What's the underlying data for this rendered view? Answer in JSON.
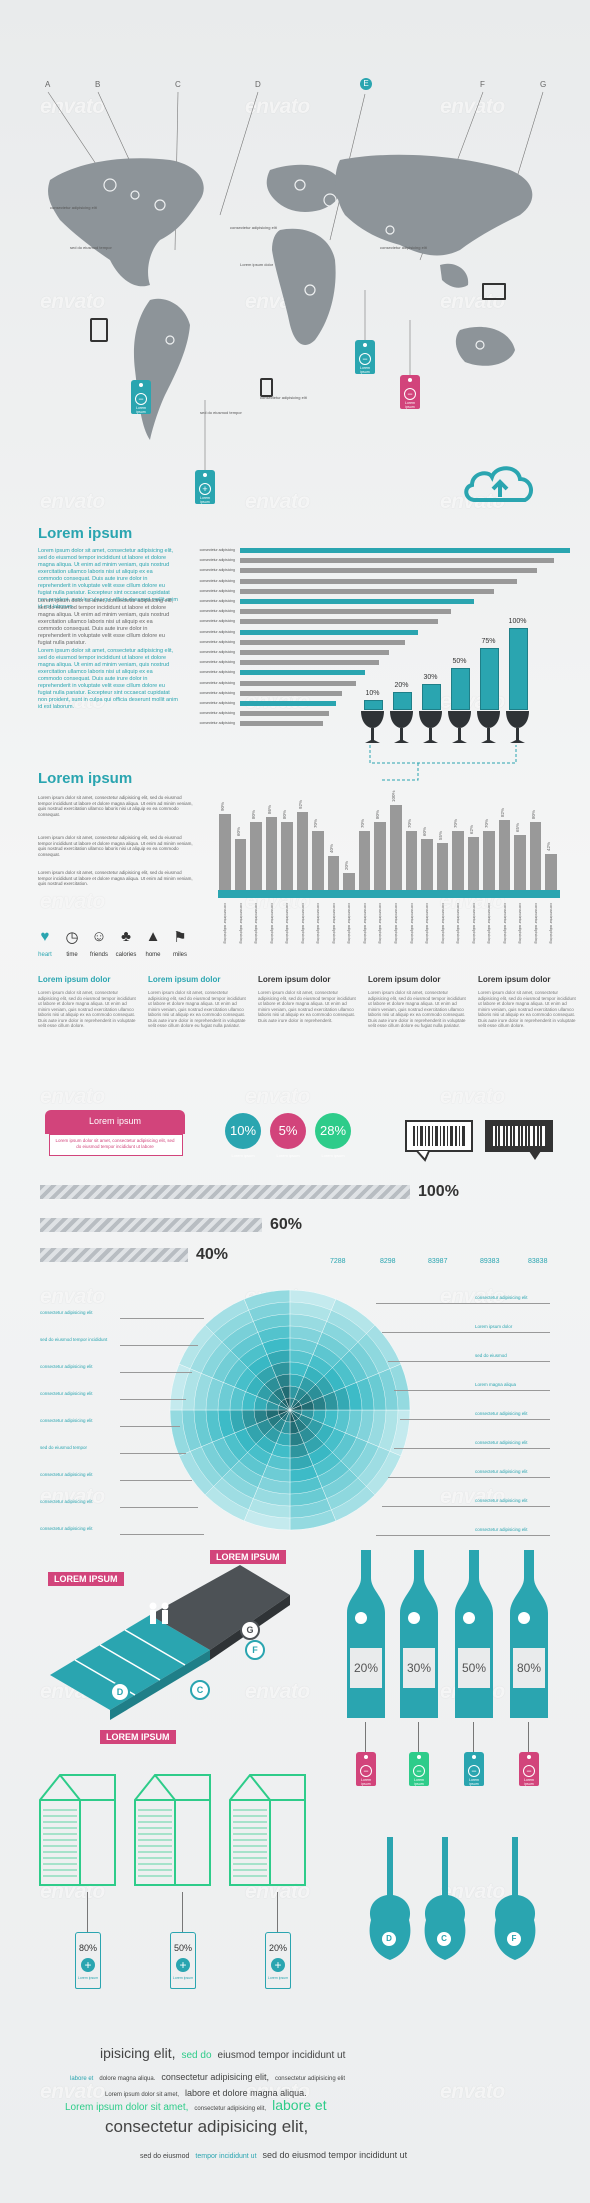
{
  "watermark": "envato",
  "map": {
    "letters": [
      "A",
      "B",
      "C",
      "D",
      "E",
      "F",
      "G"
    ],
    "tags": [
      {
        "text": "Lorem ipsum"
      },
      {
        "text": "Lorem ipsum"
      },
      {
        "text": "Lorem ipsum"
      },
      {
        "text": "Lorem ipsum"
      }
    ],
    "labels": [
      "consectetur adipisicing elit",
      "sed do eiusmod tempor",
      "consectetur adipisicing elit",
      "Lorem ipsum dolor",
      "consectetur adipisicing elit",
      "sed do eiusmod tempor",
      "consectetur adipisicing elit"
    ]
  },
  "section1": {
    "title": "Lorem ipsum",
    "paragraphs": [
      "Lorem ipsum dolor sit amet, consectetur adipisicing elit, sed do eiusmod tempor incididunt ut labore et dolore magna aliqua. Ut enim ad minim veniam, quis nostrud exercitation ullamco laboris nisi ut aliquip ex ea commodo consequat. Duis aute irure dolor in reprehenderit in voluptate velit esse cillum dolore eu fugiat nulla pariatur. Excepteur sint occaecat cupidatat non proident, sunt in culpa qui officia deserunt mollit anim id est laborum.",
      "Lorem ipsum dolor sit amet, consectetur adipisicing elit, sed do eiusmod tempor incididunt ut labore et dolore magna aliqua. Ut enim ad minim veniam, quis nostrud exercitation ullamco laboris nisi ut aliquip ex ea commodo consequat. Duis aute irure dolor in reprehenderit in voluptate velit esse cillum dolore eu fugiat nulla pariatur.",
      "Lorem ipsum dolor sit amet, consectetur adipisicing elit, sed do eiusmod tempor incididunt ut labore et dolore magna aliqua. Ut enim ad minim veniam, quis nostrud exercitation ullamco laboris nisi ut aliquip ex ea commodo consequat. Duis aute irure dolor in reprehenderit in voluptate velit esse cillum dolore eu fugiat nulla pariatur. Excepteur sint occaecat cupidatat non proident, sunt in culpa qui officia deserunt mollit anim id est laborum."
    ]
  },
  "chart_data": [
    {
      "type": "bar",
      "orientation": "horizontal",
      "categories": [
        "consectetur adipisicing",
        "consectetur adipisicing",
        "consectetur adipisicing",
        "consectetur adipisicing",
        "consectetur adipisicing",
        "consectetur adipisicing",
        "consectetur adipisicing",
        "consectetur adipisicing",
        "consectetur adipisicing",
        "consectetur adipisicing",
        "consectetur adipisicing",
        "consectetur adipisicing",
        "consectetur adipisicing",
        "consectetur adipisicing",
        "consectetur adipisicing",
        "consectetur adipisicing",
        "consectetur adipisicing",
        "consectetur adipisicing"
      ],
      "values": [
        100,
        95,
        90,
        84,
        77,
        71,
        64,
        60,
        54,
        50,
        45,
        42,
        38,
        35,
        31,
        29,
        27,
        25
      ],
      "highlight": [
        0,
        5,
        8,
        12,
        15
      ],
      "colors": {
        "bar": "#999999",
        "highlight": "#2aa5b0"
      }
    },
    {
      "type": "bar",
      "categories": [
        "",
        "",
        "",
        "",
        "",
        ""
      ],
      "values": [
        10,
        20,
        30,
        50,
        75,
        100
      ],
      "data_labels": [
        "10%",
        "20%",
        "30%",
        "50%",
        "75%",
        "100%"
      ],
      "ylim": [
        0,
        100
      ]
    },
    {
      "type": "bar",
      "categories": [
        "consectetur adipisicing",
        "consectetur adipisicing",
        "consectetur adipisicing",
        "consectetur adipisicing",
        "consectetur adipisicing",
        "consectetur adipisicing",
        "consectetur adipisicing",
        "consectetur adipisicing",
        "consectetur adipisicing",
        "consectetur adipisicing",
        "consectetur adipisicing",
        "consectetur adipisicing",
        "consectetur adipisicing",
        "consectetur adipisicing",
        "consectetur adipisicing",
        "consectetur adipisicing",
        "consectetur adipisicing",
        "consectetur adipisicing",
        "consectetur adipisicing",
        "consectetur adipisicing",
        "consectetur adipisicing",
        "consectetur adipisicing"
      ],
      "values": [
        90,
        60,
        80,
        86,
        80,
        92,
        70,
        40,
        20,
        70,
        80,
        100,
        70,
        60,
        55,
        70,
        62,
        70,
        82,
        65,
        80,
        42
      ],
      "data_labels": [
        "90%",
        "60%",
        "80%",
        "86%",
        "80%",
        "92%",
        "70%",
        "40%",
        "20%",
        "70%",
        "80%",
        "100%",
        "70%",
        "60%",
        "55%",
        "70%",
        "62%",
        "70%",
        "82%",
        "65%",
        "80%",
        "42%"
      ],
      "ylim": [
        0,
        100
      ]
    },
    {
      "type": "bar",
      "orientation": "horizontal",
      "values": [
        100,
        60,
        40
      ],
      "data_labels": [
        "100%",
        "60%",
        "40%"
      ]
    },
    {
      "type": "pie",
      "values": [
        7288,
        8298,
        83987,
        89383,
        83838
      ],
      "data_labels": [
        "7288",
        "8298",
        "83987",
        "89383",
        "83838"
      ]
    }
  ],
  "section2": {
    "title": "Lorem ipsum",
    "paragraphs": [
      "Lorem ipsum dolor sit amet, consectetur adipisicing elit, sed do eiusmod tempor incididunt ut labore et dolore magna aliqua. Ut enim ad minim veniam, quis nostrud exercitation ullamco laboris nisi ut aliquip ex ea commodo consequat.",
      "Lorem ipsum dolor sit amet, consectetur adipisicing elit, sed do eiusmod tempor incididunt ut labore et dolore magna aliqua. Ut enim ad minim veniam, quis nostrud exercitation ullamco laboris nisi ut aliquip ex ea commodo consequat.",
      "Lorem ipsum dolor sit amet, consectetur adipisicing elit, sed do eiusmod tempor incididunt ut labore et dolore magna aliqua. Ut enim ad minim veniam, quis nostrud exercitation."
    ],
    "icons": [
      {
        "name": "heart",
        "label": "heart",
        "glyph": "♥",
        "color": "#2aa5b0"
      },
      {
        "name": "time",
        "label": "time",
        "glyph": "◷",
        "color": "#333333"
      },
      {
        "name": "friends",
        "label": "friends",
        "glyph": "☺",
        "color": "#333333"
      },
      {
        "name": "calories",
        "label": "calories",
        "glyph": "♣",
        "color": "#333333"
      },
      {
        "name": "home",
        "label": "home",
        "glyph": "▲",
        "color": "#333333"
      },
      {
        "name": "miles",
        "label": "miles",
        "glyph": "⚑",
        "color": "#333333"
      }
    ]
  },
  "columns": [
    {
      "title": "Lorem ipsum dolor",
      "color": "#2aa5b0",
      "text": "Lorem ipsum dolor sit amet, consectetur adipisicing elit, sed do eiusmod tempor incididunt ut labore et dolore magna aliqua. Ut enim ad minim veniam, quis nostrud exercitation ullamco laboris nisi ut aliquip ex ea commodo consequat. Duis aute irure dolor in reprehenderit in voluptate velit esse cillum dolore."
    },
    {
      "title": "Lorem ipsum dolor",
      "color": "#2aa5b0",
      "text": "Lorem ipsum dolor sit amet, consectetur adipisicing elit, sed do eiusmod tempor incididunt ut labore et dolore magna aliqua. Ut enim ad minim veniam, quis nostrud exercitation ullamco laboris nisi ut aliquip ex ea commodo consequat. Duis aute irure dolor in reprehenderit in voluptate velit esse cillum dolore eu fugiat nulla pariatur."
    },
    {
      "title": "Lorem ipsum dolor",
      "color": "#333333",
      "text": "Lorem ipsum dolor sit amet, consectetur adipisicing elit, sed do eiusmod tempor incididunt ut labore et dolore magna aliqua. Ut enim ad minim veniam, quis nostrud exercitation ullamco laboris nisi ut aliquip ex ea commodo consequat. Duis aute irure dolor in reprehenderit."
    },
    {
      "title": "Lorem ipsum dolor",
      "color": "#333333",
      "text": "Lorem ipsum dolor sit amet, consectetur adipisicing elit, sed do eiusmod tempor incididunt ut labore et dolore magna aliqua. Ut enim ad minim veniam, quis nostrud exercitation ullamco laboris nisi ut aliquip ex ea commodo consequat. Duis aute irure dolor in reprehenderit in voluptate velit esse cillum dolore eu fugiat nulla pariatur."
    },
    {
      "title": "Lorem ipsum dolor",
      "color": "#333333",
      "text": "Lorem ipsum dolor sit amet, consectetur adipisicing elit, sed do eiusmod tempor incididunt ut labore et dolore magna aliqua. Ut enim ad minim veniam, quis nostrud exercitation ullamco laboris nisi ut aliquip ex ea commodo consequat. Duis aute irure dolor in reprehenderit in voluptate velit esse cillum dolore."
    }
  ],
  "ribbon": {
    "title": "Lorem ipsum",
    "text": "Lorem ipsum dolor sit amet, consectetur adipisicing elit, sed do eiusmod tempor incididunt ut labore"
  },
  "percent_circles": [
    {
      "value": "10%",
      "label": "Lorem ipsum",
      "color": "#2aa5b0"
    },
    {
      "value": "5%",
      "label": "Lorem ipsum",
      "color": "#d2447b"
    },
    {
      "value": "28%",
      "label": "Lorem ipsum",
      "color": "#2ecc8a"
    }
  ],
  "wheel": {
    "left_labels": [
      "consectetur adipisicing elit",
      "sed do eiusmod tempor incididunt",
      "consectetur adipisicing elit",
      "consectetur adipisicing elit",
      "consectetur adipisicing elit",
      "sed do eiusmod tempor",
      "consectetur adipisicing elit",
      "consectetur adipisicing elit",
      "consectetur adipisicing elit"
    ],
    "right_labels": [
      "consectetur adipisicing elit",
      "Lorem ipsum dolor",
      "sed do eiusmod",
      "Lorem magna aliqua",
      "consectetur adipisicing elit",
      "consectetur adipisicing elit",
      "consectetur adipisicing elit",
      "consectetur adipisicing elit",
      "consectetur adipisicing elit"
    ]
  },
  "iso": {
    "banners": [
      "LOREM IPSUM",
      "LOREM IPSUM",
      "LOREM IPSUM"
    ],
    "markers": [
      "G",
      "F",
      "C",
      "D"
    ]
  },
  "bottles": {
    "values": [
      "20%",
      "30%",
      "50%",
      "80%"
    ],
    "tag_colors": [
      "#d2447b",
      "#2ecc8a",
      "#2aa5b0",
      "#d2447b"
    ],
    "tag_text": "Lorem ipsum"
  },
  "cartons": {
    "values": [
      "80%",
      "50%",
      "20%"
    ],
    "tag_text": "Lorem ipsum"
  },
  "guitars": {
    "letters": [
      "D",
      "C",
      "F"
    ]
  },
  "cloud": {
    "lines": [
      [
        {
          "t": "ipisicing elit,",
          "c": "#444444",
          "s": 14
        },
        {
          "t": "sed do",
          "c": "#2ecc8a",
          "s": 10
        },
        {
          "t": "eiusmod tempor incididunt ut",
          "c": "#444444",
          "s": 10
        }
      ],
      [
        {
          "t": "labore et",
          "c": "#2aa5b0",
          "s": 6
        },
        {
          "t": "dolore magna aliqua.",
          "c": "#444444",
          "s": 6
        },
        {
          "t": "consectetur adipisicing elit,",
          "c": "#444444",
          "s": 9
        },
        {
          "t": "consectetur adipisicing elit",
          "c": "#444444",
          "s": 6
        }
      ],
      [
        {
          "t": "Lorem ipsum dolor sit amet,",
          "c": "#444444",
          "s": 6
        },
        {
          "t": "labore et dolore magna aliqua.",
          "c": "#444444",
          "s": 9
        }
      ],
      [
        {
          "t": "Lorem ipsum dolor sit amet,",
          "c": "#2ecc8a",
          "s": 10
        },
        {
          "t": "consectetur adipisicing elit,",
          "c": "#444444",
          "s": 6
        },
        {
          "t": "labore et",
          "c": "#2ecc8a",
          "s": 14
        }
      ],
      [
        {
          "t": "consectetur adipisicing elit,",
          "c": "#444444",
          "s": 17
        }
      ],
      [
        {
          "t": "sed do eiusmod",
          "c": "#444444",
          "s": 7
        },
        {
          "t": "tempor incididunt ut",
          "c": "#2aa5b0",
          "s": 7
        },
        {
          "t": "sed do eiusmod tempor incididunt ut",
          "c": "#444444",
          "s": 9
        }
      ]
    ]
  }
}
